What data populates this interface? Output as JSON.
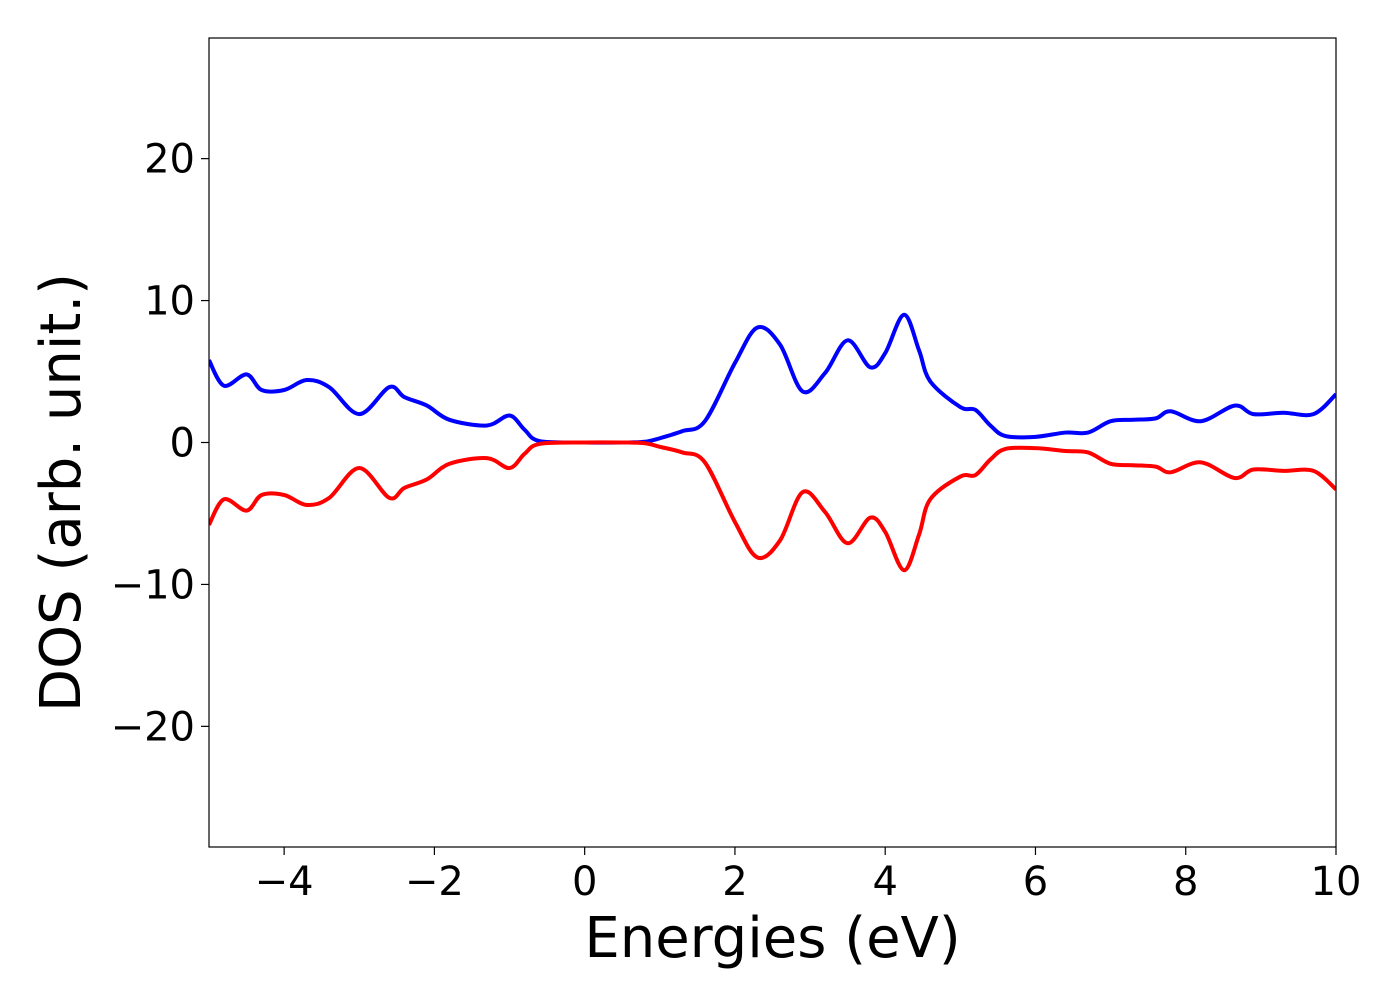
{
  "chart_data": {
    "type": "line",
    "title": "",
    "xlabel": "Energies (eV)",
    "ylabel": "DOS (arb. unit.)",
    "xlim": [
      -5,
      10
    ],
    "ylim": [
      -28.5,
      28.5
    ],
    "grid": false,
    "x_ticks": [
      -4,
      -2,
      0,
      2,
      4,
      6,
      8,
      10
    ],
    "x_tick_labels": [
      "−4",
      "−2",
      "0",
      "2",
      "4",
      "6",
      "8",
      "10"
    ],
    "y_ticks": [
      -20,
      -10,
      0,
      10,
      20
    ],
    "y_tick_labels": [
      "−20",
      "−10",
      "0",
      "10",
      "20"
    ],
    "series": [
      {
        "color": "#0000ff",
        "x": [
          -5.0,
          -4.8,
          -4.5,
          -4.3,
          -4.0,
          -3.7,
          -3.4,
          -3.0,
          -2.6,
          -2.4,
          -2.1,
          -1.8,
          -1.3,
          -1.0,
          -0.8,
          -0.6,
          0.0,
          0.5,
          0.8,
          1.0,
          1.3,
          1.6,
          2.0,
          2.3,
          2.6,
          2.9,
          3.2,
          3.5,
          3.8,
          4.0,
          4.25,
          4.45,
          4.6,
          5.0,
          5.2,
          5.4,
          5.6,
          6.0,
          6.4,
          6.7,
          7.0,
          7.3,
          7.6,
          7.8,
          8.2,
          8.65,
          8.9,
          9.3,
          9.7,
          10.0
        ],
        "y": [
          5.8,
          4.0,
          4.8,
          3.7,
          3.7,
          4.4,
          3.9,
          2.0,
          3.9,
          3.2,
          2.6,
          1.6,
          1.2,
          1.9,
          0.9,
          0.1,
          0.0,
          0.0,
          0.05,
          0.3,
          0.8,
          1.5,
          5.6,
          8.1,
          6.9,
          3.6,
          4.9,
          7.2,
          5.3,
          6.3,
          9.0,
          6.5,
          4.3,
          2.5,
          2.3,
          1.2,
          0.45,
          0.4,
          0.7,
          0.7,
          1.5,
          1.6,
          1.7,
          2.2,
          1.5,
          2.6,
          2.0,
          2.1,
          2.0,
          3.4
        ]
      },
      {
        "color": "#ff0000",
        "x": [
          -5.0,
          -4.8,
          -4.5,
          -4.3,
          -4.0,
          -3.7,
          -3.4,
          -3.0,
          -2.6,
          -2.4,
          -2.1,
          -1.8,
          -1.3,
          -1.0,
          -0.8,
          -0.6,
          0.0,
          0.5,
          0.8,
          1.0,
          1.3,
          1.6,
          2.0,
          2.3,
          2.6,
          2.9,
          3.2,
          3.5,
          3.8,
          4.0,
          4.25,
          4.45,
          4.6,
          5.0,
          5.2,
          5.4,
          5.6,
          6.0,
          6.4,
          6.7,
          7.0,
          7.3,
          7.6,
          7.8,
          8.2,
          8.65,
          8.9,
          9.3,
          9.7,
          10.0
        ],
        "y": [
          -5.8,
          -4.0,
          -4.8,
          -3.7,
          -3.7,
          -4.4,
          -3.9,
          -1.8,
          -3.9,
          -3.2,
          -2.6,
          -1.5,
          -1.1,
          -1.8,
          -0.8,
          -0.1,
          0.0,
          0.0,
          -0.05,
          -0.3,
          -0.7,
          -1.4,
          -5.6,
          -8.1,
          -6.9,
          -3.5,
          -4.9,
          -7.1,
          -5.3,
          -6.3,
          -9.0,
          -6.5,
          -4.0,
          -2.4,
          -2.3,
          -1.2,
          -0.45,
          -0.4,
          -0.6,
          -0.7,
          -1.5,
          -1.6,
          -1.7,
          -2.1,
          -1.4,
          -2.5,
          -1.9,
          -2.0,
          -2.0,
          -3.3
        ]
      }
    ]
  }
}
